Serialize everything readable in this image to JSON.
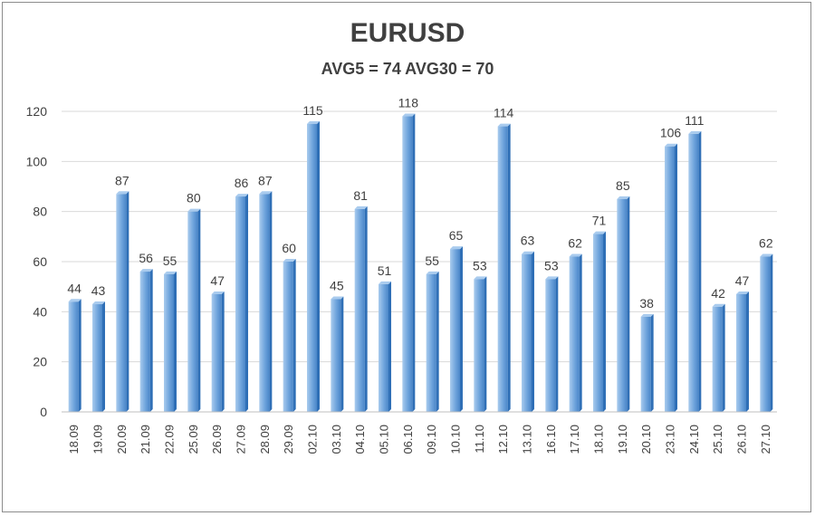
{
  "chart_data": {
    "type": "bar",
    "title": "EURUSD",
    "subtitle": "AVG5 = 74 AVG30 = 70",
    "categories": [
      "18.09",
      "19.09",
      "20.09",
      "21.09",
      "22.09",
      "25.09",
      "26.09",
      "27.09",
      "28.09",
      "29.09",
      "02.10",
      "03.10",
      "04.10",
      "05.10",
      "06.10",
      "09.10",
      "10.10",
      "11.10",
      "12.10",
      "13.10",
      "16.10",
      "17.10",
      "18.10",
      "19.10",
      "20.10",
      "23.10",
      "24.10",
      "25.10",
      "26.10",
      "27.10"
    ],
    "values": [
      44,
      43,
      87,
      56,
      55,
      80,
      47,
      86,
      87,
      60,
      115,
      45,
      81,
      51,
      118,
      55,
      65,
      53,
      114,
      63,
      53,
      62,
      71,
      85,
      38,
      106,
      111,
      42,
      47,
      62
    ],
    "ylim": [
      0,
      120
    ],
    "yticks": [
      0,
      20,
      40,
      60,
      80,
      100,
      120
    ],
    "grid": true,
    "legend": "none",
    "colors": {
      "bar_light": "#a9cbee",
      "bar_mid": "#6fa4dc",
      "bar_dark": "#2f6fb6",
      "grid": "#d9d9d9",
      "text": "#404040"
    }
  }
}
